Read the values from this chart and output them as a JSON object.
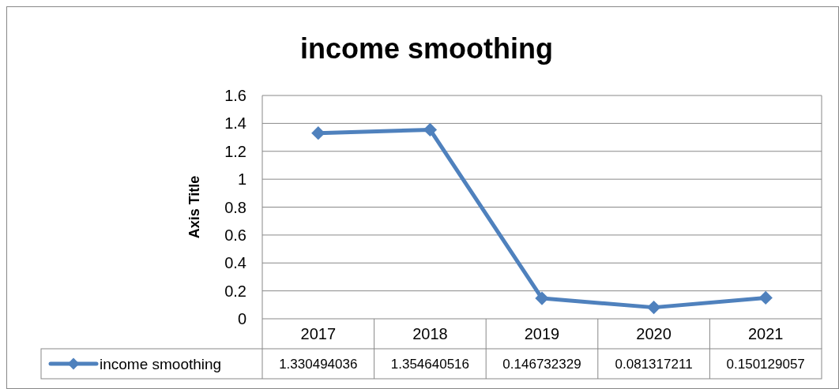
{
  "chart_data": {
    "type": "line",
    "title": "income smoothing",
    "ylabel": "Axis Title",
    "categories": [
      "2017",
      "2018",
      "2019",
      "2020",
      "2021"
    ],
    "series": [
      {
        "name": "income smoothing",
        "color": "#4f81bd",
        "values": [
          1.330494036,
          1.354640516,
          0.146732329,
          0.081317211,
          0.150129057
        ]
      }
    ],
    "ylim": [
      0,
      1.6
    ],
    "yticks": [
      0,
      0.2,
      0.4,
      0.6,
      0.8,
      1,
      1.2,
      1.4,
      1.6
    ],
    "grid": "y",
    "legend": "bottom",
    "marker": "diamond",
    "line_style": "solid",
    "data_labels": true
  }
}
